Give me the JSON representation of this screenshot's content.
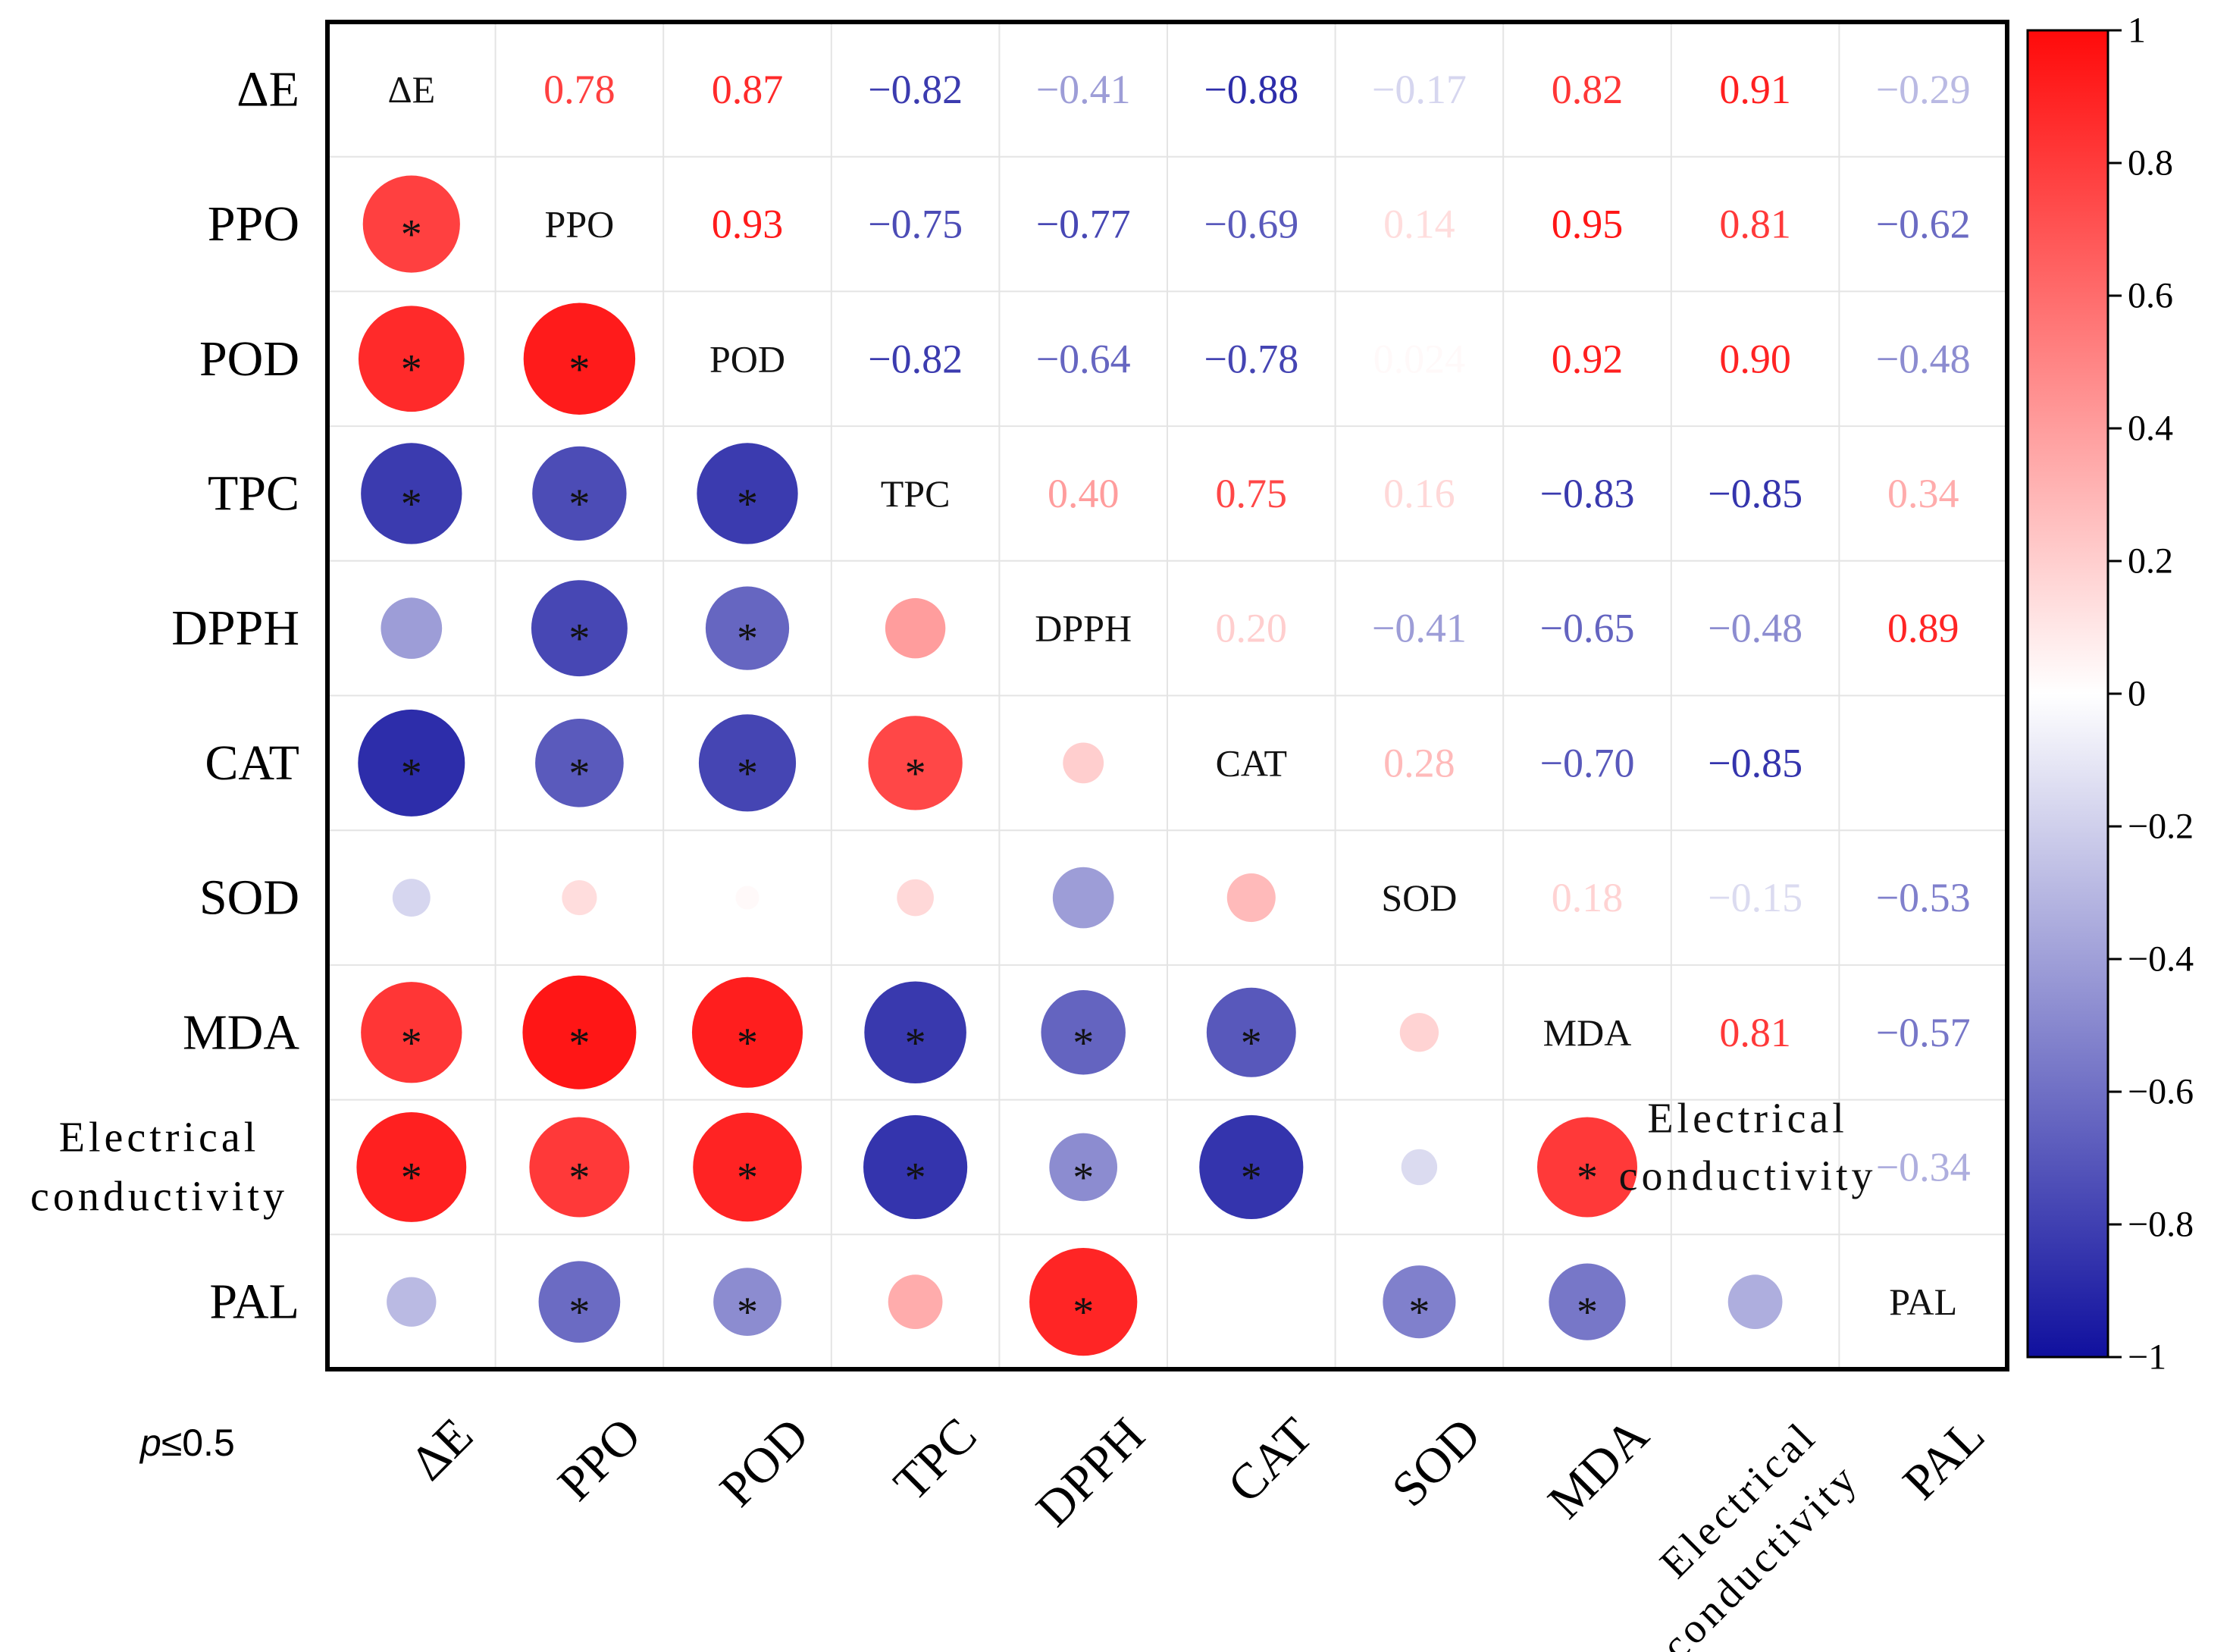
{
  "chart_data": {
    "type": "heatmap",
    "subtype": "correlation-matrix",
    "variables": [
      "ΔE",
      "PPO",
      "POD",
      "TPC",
      "DPPH",
      "CAT",
      "SOD",
      "MDA",
      "Electrical conductivity",
      "PAL"
    ],
    "axis_labels": {
      "y": [
        "ΔE",
        "PPO",
        "POD",
        "TPC",
        "DPPH",
        "CAT",
        "SOD",
        "MDA",
        "Electrical conductivity",
        "PAL"
      ],
      "x": [
        "ΔE",
        "PPO",
        "POD",
        "TPC",
        "DPPH",
        "CAT",
        "SOD",
        "MDA",
        "Electrical conductivity",
        "PAL"
      ]
    },
    "diagonal_labels": [
      "ΔE",
      "PPO",
      "POD",
      "TPC",
      "DPPH",
      "CAT",
      "SOD",
      "MDA",
      "Electrical conductivity",
      "PAL"
    ],
    "upper_text": [
      [
        null,
        "0.78",
        "0.87",
        "−0.82",
        "−0.41",
        "−0.88",
        "−0.17",
        "0.82",
        "0.91",
        "−0.29"
      ],
      [
        null,
        null,
        "0.93",
        "−0.75",
        "−0.77",
        "−0.69",
        "0.14",
        "0.95",
        "0.81",
        "−0.62"
      ],
      [
        null,
        null,
        null,
        "−0.82",
        "−0.64",
        "−0.78",
        "0.024",
        "0.92",
        "0.90",
        "−0.48"
      ],
      [
        null,
        null,
        null,
        null,
        "0.40",
        "0.75",
        "0.16",
        "−0.83",
        "−0.85",
        "0.34"
      ],
      [
        null,
        null,
        null,
        null,
        null,
        "0.20",
        "−0.41",
        "−0.65",
        "−0.48",
        "0.89"
      ],
      [
        null,
        null,
        null,
        null,
        null,
        null,
        "0.28",
        "−0.70",
        "−0.85",
        ""
      ],
      [
        null,
        null,
        null,
        null,
        null,
        null,
        null,
        "0.18",
        "−0.15",
        "−0.53"
      ],
      [
        null,
        null,
        null,
        null,
        null,
        null,
        null,
        null,
        "0.81",
        "−0.57"
      ],
      [
        null,
        null,
        null,
        null,
        null,
        null,
        null,
        null,
        null,
        "−0.34"
      ],
      [
        null,
        null,
        null,
        null,
        null,
        null,
        null,
        null,
        null,
        null
      ]
    ],
    "matrix": [
      [
        1,
        0.78,
        0.87,
        -0.82,
        -0.41,
        -0.88,
        -0.17,
        0.82,
        0.91,
        -0.29
      ],
      [
        0.78,
        1,
        0.93,
        -0.75,
        -0.77,
        -0.69,
        0.14,
        0.95,
        0.81,
        -0.62
      ],
      [
        0.87,
        0.93,
        1,
        -0.82,
        -0.64,
        -0.78,
        0.024,
        0.92,
        0.9,
        -0.48
      ],
      [
        -0.82,
        -0.75,
        -0.82,
        1,
        0.4,
        0.75,
        0.16,
        -0.83,
        -0.85,
        0.34
      ],
      [
        -0.41,
        -0.77,
        -0.64,
        0.4,
        1,
        0.2,
        -0.41,
        -0.65,
        -0.48,
        0.89
      ],
      [
        -0.88,
        -0.69,
        -0.78,
        0.75,
        0.2,
        1,
        0.28,
        -0.7,
        -0.85,
        0
      ],
      [
        -0.17,
        0.14,
        0.024,
        0.16,
        -0.41,
        0.28,
        1,
        0.18,
        -0.15,
        -0.53
      ],
      [
        0.82,
        0.95,
        0.92,
        -0.83,
        -0.65,
        -0.7,
        0.18,
        1,
        0.81,
        -0.57
      ],
      [
        0.91,
        0.81,
        0.9,
        -0.85,
        -0.48,
        -0.85,
        -0.15,
        0.81,
        1,
        -0.34
      ],
      [
        -0.29,
        -0.62,
        -0.48,
        0.34,
        0.89,
        0,
        -0.53,
        -0.57,
        -0.34,
        1
      ]
    ],
    "significant_pairs": [
      [
        1,
        0
      ],
      [
        2,
        0
      ],
      [
        2,
        1
      ],
      [
        3,
        0
      ],
      [
        3,
        1
      ],
      [
        3,
        2
      ],
      [
        4,
        1
      ],
      [
        4,
        2
      ],
      [
        5,
        0
      ],
      [
        5,
        1
      ],
      [
        5,
        2
      ],
      [
        5,
        3
      ],
      [
        7,
        0
      ],
      [
        7,
        1
      ],
      [
        7,
        2
      ],
      [
        7,
        3
      ],
      [
        7,
        4
      ],
      [
        7,
        5
      ],
      [
        8,
        0
      ],
      [
        8,
        1
      ],
      [
        8,
        2
      ],
      [
        8,
        3
      ],
      [
        8,
        4
      ],
      [
        8,
        5
      ],
      [
        8,
        7
      ],
      [
        9,
        1
      ],
      [
        9,
        2
      ],
      [
        9,
        4
      ],
      [
        9,
        6
      ],
      [
        9,
        7
      ]
    ],
    "significance_marker": "*",
    "significance_note": {
      "p": "p",
      "rest": "≤0.5"
    },
    "colorbar": {
      "range": [
        -1,
        1
      ],
      "ticks": [
        1,
        0.8,
        0.6,
        0.4,
        0.2,
        0,
        -0.2,
        -0.4,
        -0.6,
        -0.8,
        -1
      ],
      "tick_labels": [
        "1",
        "0.8",
        "0.6",
        "0.4",
        "0.2",
        "0",
        "−0.2",
        "−0.4",
        "−0.6",
        "−0.8",
        "−1"
      ],
      "colors": {
        "negative": "#10109e",
        "zero": "#ffffff",
        "positive": "#ff0a0a"
      }
    }
  }
}
